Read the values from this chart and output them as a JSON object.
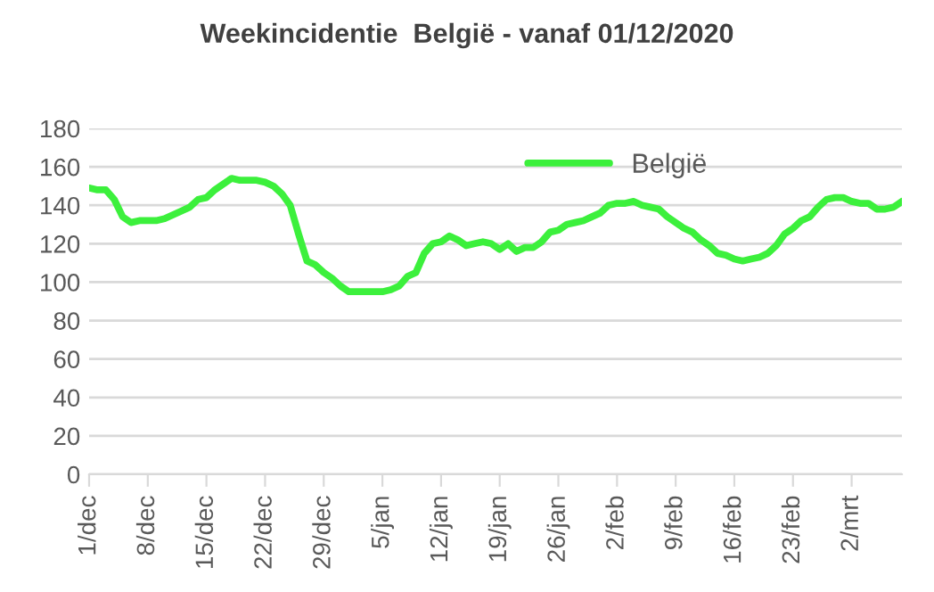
{
  "chart_data": {
    "type": "line",
    "title": "Weekincidentie  België - vanaf 01/12/2020",
    "categories": [
      "1/dec",
      null,
      null,
      null,
      null,
      null,
      null,
      "8/dec",
      null,
      null,
      null,
      null,
      null,
      null,
      "15/dec",
      null,
      null,
      null,
      null,
      null,
      null,
      "22/dec",
      null,
      null,
      null,
      null,
      null,
      null,
      "29/dec",
      null,
      null,
      null,
      null,
      null,
      null,
      "5/jan",
      null,
      null,
      null,
      null,
      null,
      null,
      "12/jan",
      null,
      null,
      null,
      null,
      null,
      null,
      "19/jan",
      null,
      null,
      null,
      null,
      null,
      null,
      "26/jan",
      null,
      null,
      null,
      null,
      null,
      null,
      "2/feb",
      null,
      null,
      null,
      null,
      null,
      null,
      "9/feb",
      null,
      null,
      null,
      null,
      null,
      null,
      "16/feb",
      null,
      null,
      null,
      null,
      null,
      null,
      "23/feb",
      null,
      null,
      null,
      null,
      null,
      null,
      "2/mrt",
      null,
      null,
      null,
      null,
      null,
      null
    ],
    "series": [
      {
        "name": "België",
        "color": "#3cf03c",
        "values": [
          149,
          148,
          148,
          143,
          134,
          131,
          132,
          132,
          132,
          133,
          135,
          137,
          139,
          143,
          144,
          148,
          151,
          154,
          153,
          153,
          153,
          152,
          150,
          146,
          140,
          125,
          111,
          109,
          105,
          102,
          98,
          95,
          95,
          95,
          95,
          95,
          96,
          98,
          103,
          105,
          115,
          120,
          121,
          124,
          122,
          119,
          120,
          121,
          120,
          117,
          120,
          116,
          118,
          118,
          121,
          126,
          127,
          130,
          131,
          132,
          134,
          136,
          140,
          141,
          141,
          142,
          140,
          139,
          138,
          134,
          131,
          128,
          126,
          122,
          119,
          115,
          114,
          112,
          111,
          112,
          113,
          115,
          119,
          125,
          128,
          132,
          134,
          139,
          143,
          144,
          144,
          142,
          141,
          141,
          138,
          138,
          139,
          142
        ]
      }
    ],
    "ylim": [
      0,
      180
    ],
    "yticks": [
      0,
      20,
      40,
      60,
      80,
      100,
      120,
      140,
      160,
      180
    ],
    "grid": "y",
    "legend": "top",
    "marker": "none",
    "line_style": "solid"
  }
}
